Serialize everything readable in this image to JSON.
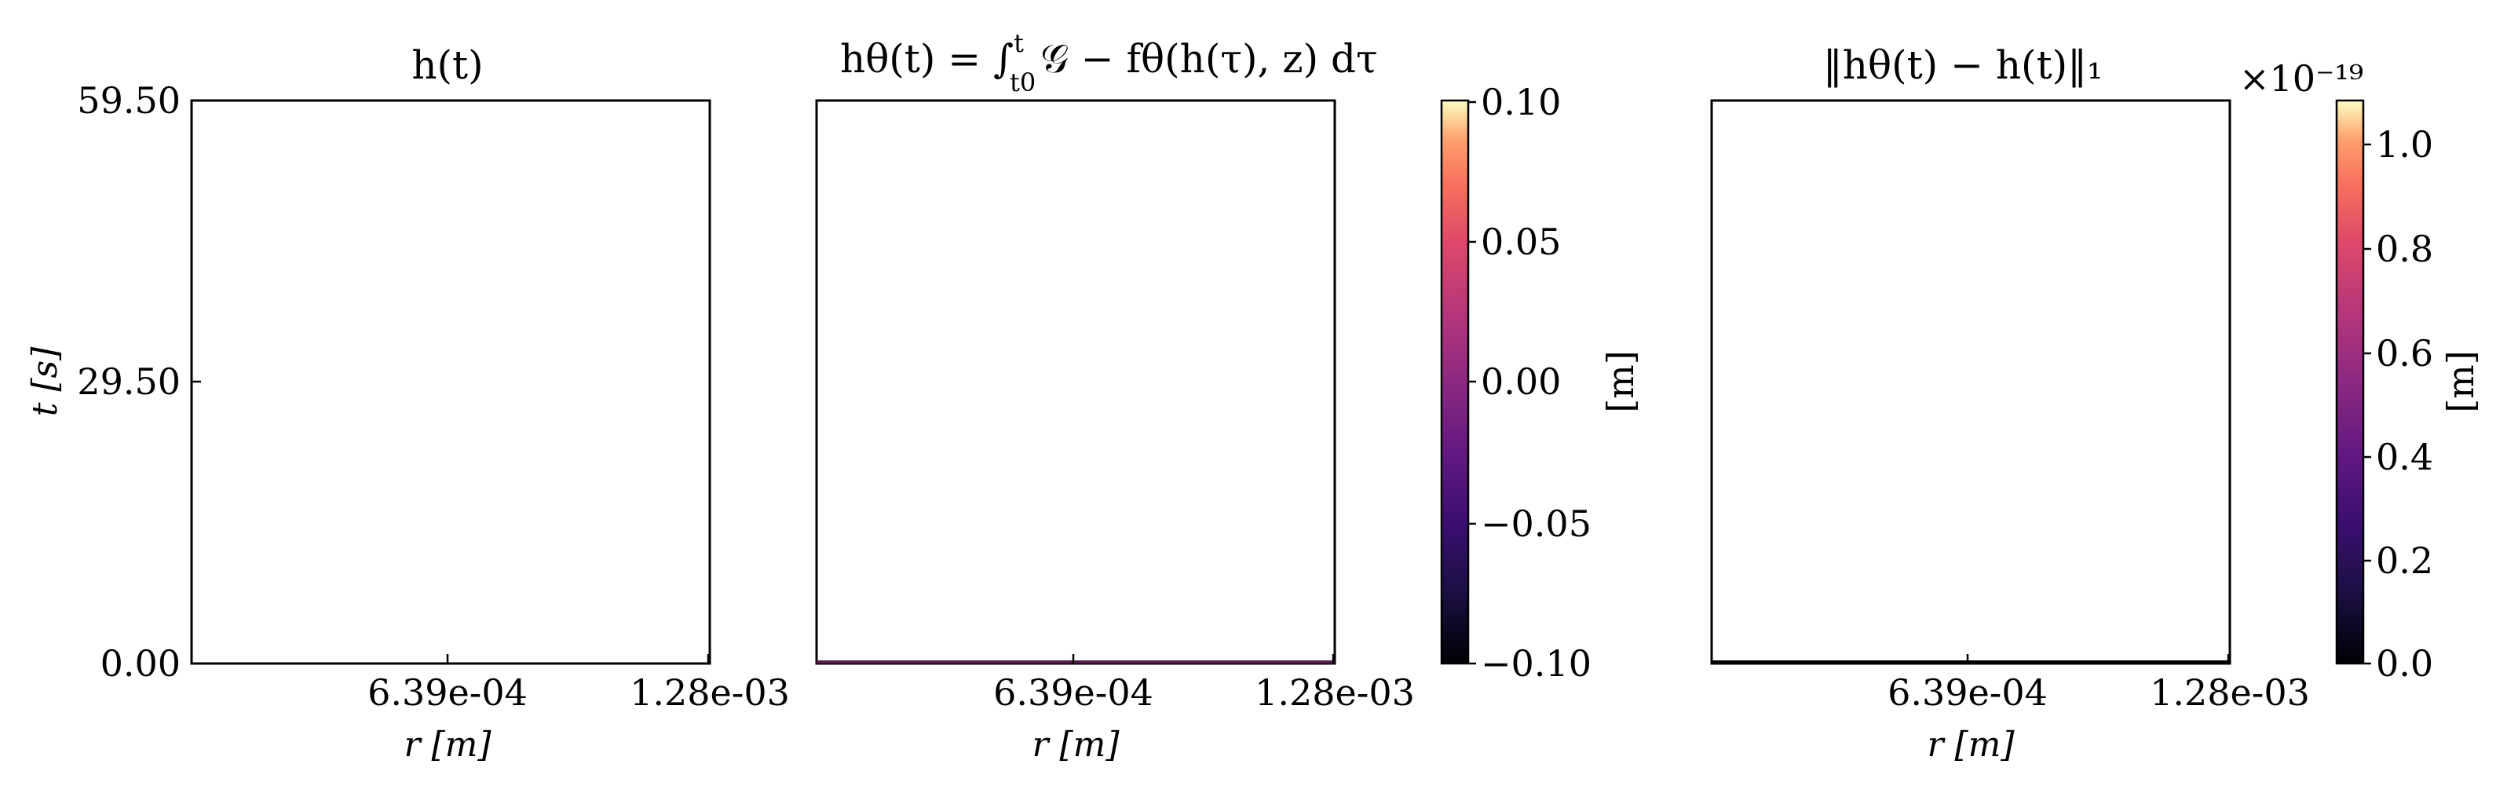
{
  "chart_data": [
    {
      "type": "heatmap",
      "title": "h(t)",
      "xlabel": "r [m]",
      "ylabel": "t [s]",
      "x_ticks": [
        "6.39e-04",
        "1.28e-03"
      ],
      "y_ticks": [
        "0.00",
        "29.50",
        "59.50"
      ],
      "xlim": [
        0,
        0.00128
      ],
      "ylim": [
        0,
        59.5
      ]
    },
    {
      "type": "heatmap",
      "title": "hθ(t) = ∫_{t0}^{t} 𝒢 − fθ(h(τ), z) dτ",
      "title_parts": {
        "main": "hθ(t) = ∫",
        "lower_limit": "t0",
        "upper_limit": "t",
        "rest": "𝒢 − fθ(h(τ), z) dτ"
      },
      "xlabel": "r [m]",
      "x_ticks": [
        "6.39e-04",
        "1.28e-03"
      ],
      "xlim": [
        0,
        0.00128
      ],
      "ylim": [
        0,
        59.5
      ],
      "colorbar": {
        "label": "[m]",
        "ticks": [
          "0.10",
          "0.05",
          "0.00",
          "−0.05",
          "−0.10"
        ],
        "range": [
          -0.1,
          0.1
        ],
        "colormap": "magma"
      }
    },
    {
      "type": "heatmap",
      "title": "‖hθ(t) − h(t)‖₁",
      "xlabel": "r [m]",
      "x_ticks": [
        "6.39e-04",
        "1.28e-03"
      ],
      "xlim": [
        0,
        0.00128
      ],
      "ylim": [
        0,
        59.5
      ],
      "colorbar": {
        "label": "[m]",
        "ticks": [
          "1.0",
          "0.8",
          "0.6",
          "0.4",
          "0.2",
          "0.0"
        ],
        "range": [
          0.0,
          1.1
        ],
        "offset": "×10⁻¹⁹",
        "colormap": "magma"
      }
    }
  ]
}
